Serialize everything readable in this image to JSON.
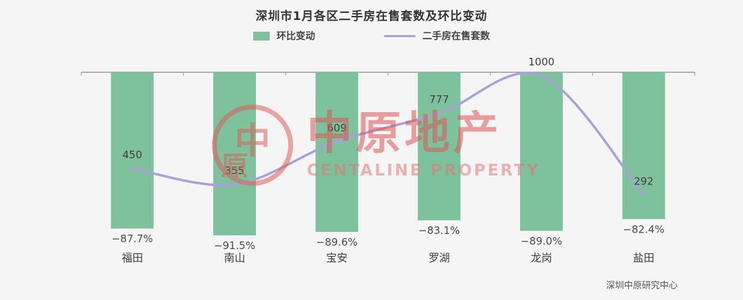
{
  "title": "深圳市1月各区二手房在售套数及环比变动",
  "legend": {
    "bar_label": "环比变动",
    "line_label": "二手房在售套数"
  },
  "watermark": {
    "logo_char_main": "中",
    "logo_char_sub": "原",
    "cn": "中原地产",
    "en": "CENTALINE PROPERTY"
  },
  "source": "深圳中原研究中心",
  "colors": {
    "bar": "#7dc19d",
    "line": "#a8a2d8",
    "axis": "#9a9aa0",
    "label_text": "#3d3d3d",
    "pct_text": "#4a4a4a",
    "watermark": "#dc5753"
  },
  "chart_data": {
    "type": "bar",
    "subtype": "bar+line-combo",
    "title": "深圳市1月各区二手房在售套数及环比变动",
    "categories": [
      "福田",
      "南山",
      "宝安",
      "罗湖",
      "龙岗",
      "盐田"
    ],
    "series": [
      {
        "name": "环比变动",
        "type": "bar",
        "unit": "%",
        "values": [
          -87.7,
          -91.5,
          -89.6,
          -83.1,
          -89.0,
          -82.4
        ],
        "labels": [
          "−87.7%",
          "−91.5%",
          "−89.6%",
          "−83.1%",
          "−89.0%",
          "−82.4%"
        ]
      },
      {
        "name": "二手房在售套数",
        "type": "line",
        "unit": "套",
        "values": [
          450,
          355,
          609,
          777,
          1000,
          292
        ],
        "labels": [
          "450",
          "355",
          "609",
          "777",
          "1000",
          "292"
        ]
      }
    ],
    "legend_position": "top",
    "grid": false,
    "value_axis_shown": false
  }
}
